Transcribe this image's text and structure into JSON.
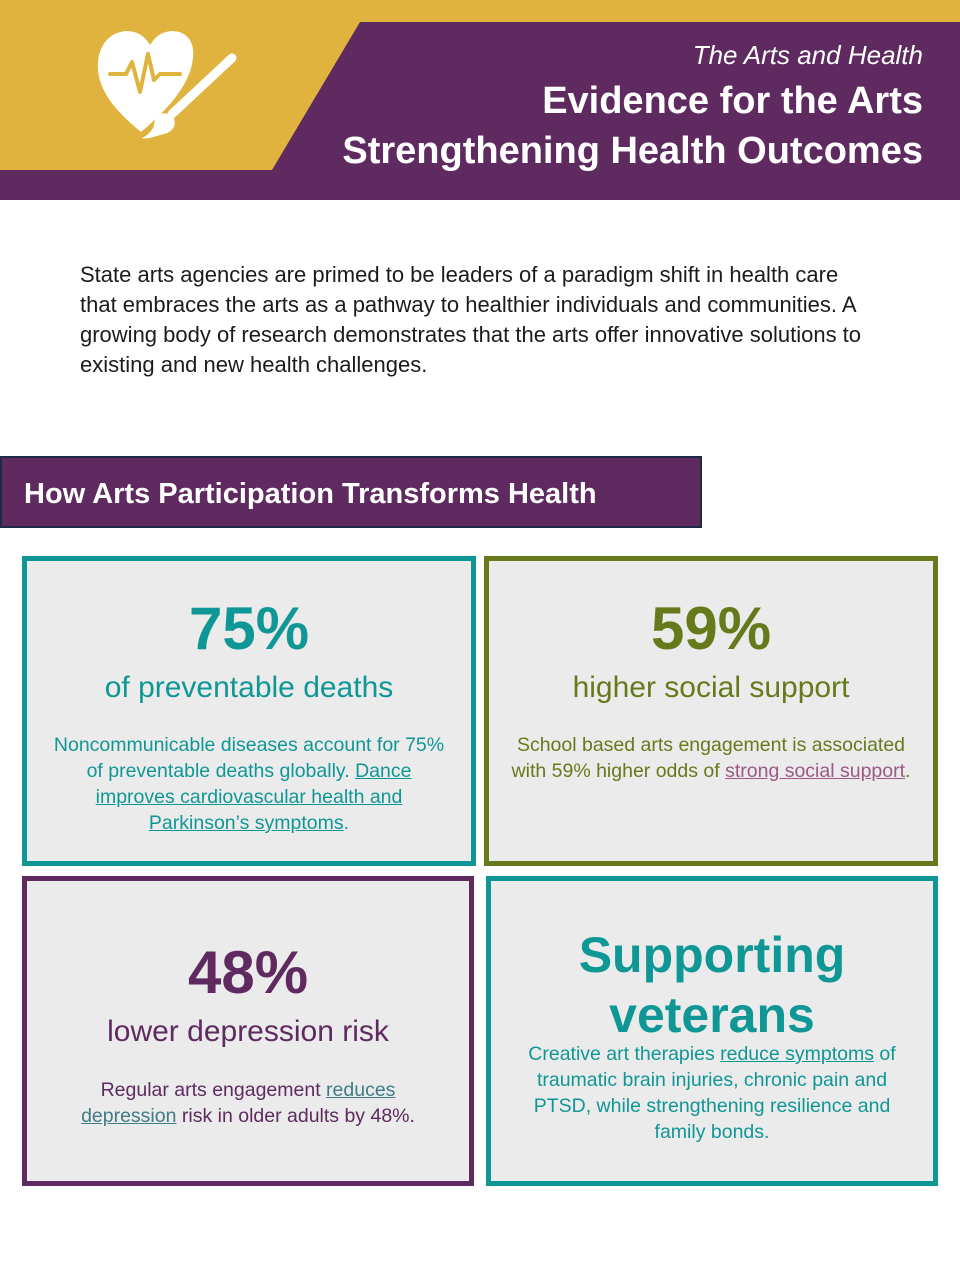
{
  "colors": {
    "gold": "#dfb33d",
    "purple": "#5e2a5f",
    "teal": "#0f9796",
    "olive": "#667a1c",
    "card_bg": "#ebebeb",
    "link_mauve": "#9b5a86"
  },
  "header": {
    "logo_icon": "heart-paintbrush-icon",
    "kicker": "The Arts and Health",
    "title": "Evidence for the Arts Strengthening Health Outcomes"
  },
  "intro": "State arts agencies are primed to be leaders of a paradigm shift in health care that embraces the arts as a pathway to healthier individuals and communities. A growing body of research demonstrates that the arts offer innovative solutions to existing and new health challenges.",
  "section": {
    "heading": "How Arts Participation Transforms Health"
  },
  "cards": [
    {
      "stat": "75%",
      "subtitle": "of preventable deaths",
      "text_before": "Noncommunicable diseases account for 75% of preventable deaths globally. ",
      "link": "Dance improves cardiovascular health and Parkinson’s symptoms",
      "text_after": "."
    },
    {
      "stat": "59%",
      "subtitle": "higher social support",
      "text_before": "School based arts engagement is associated with 59% higher odds of ",
      "link": "strong social support",
      "text_after": "."
    },
    {
      "stat": "48%",
      "subtitle": "lower depression risk",
      "text_before": "Regular arts engagement ",
      "link": "reduces depression",
      "text_after": " risk in older adults by 48%."
    },
    {
      "stat": "Supporting veterans",
      "text_before": "Creative art therapies ",
      "link": "reduce symptoms",
      "text_after": " of traumatic brain injuries, chronic pain and PTSD, while strengthening resilience and family bonds."
    }
  ]
}
